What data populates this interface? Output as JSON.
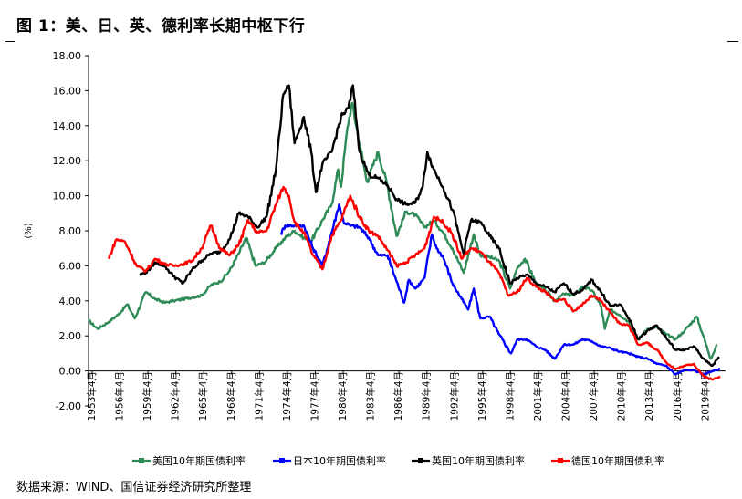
{
  "header": {
    "title": "图 1：美、日、英、德利率长期中枢下行"
  },
  "footer": {
    "source": "数据来源：WIND、国信证券经济研究所整理"
  },
  "chart_data": {
    "type": "line",
    "ylabel": "(%)",
    "xlabel": "",
    "ylim": [
      -2.0,
      18.0
    ],
    "yticks": [
      "18.00",
      "16.00",
      "14.00",
      "12.00",
      "10.00",
      "8.00",
      "6.00",
      "4.00",
      "2.00",
      "0.00",
      "-2.00"
    ],
    "xlim": [
      1953.33,
      2021.9
    ],
    "xticks": [
      "1953年4月",
      "1956年4月",
      "1959年4月",
      "1962年4月",
      "1965年4月",
      "1968年4月",
      "1971年4月",
      "1974年4月",
      "1977年4月",
      "1980年4月",
      "1983年4月",
      "1986年4月",
      "1989年4月",
      "1992年4月",
      "1995年4月",
      "1998年4月",
      "2001年4月",
      "2004年4月",
      "2007年4月",
      "2010年4月",
      "2013年4月",
      "2016年4月",
      "2019年4月"
    ],
    "grid": false,
    "legend": "bottom",
    "series": [
      {
        "name": "美国10年期国债利率",
        "color": "#2e8b57",
        "x": [
          1953.3,
          1954.3,
          1955.5,
          1956.5,
          1957.5,
          1958.3,
          1959.5,
          1960.5,
          1961.5,
          1962.5,
          1963.5,
          1964.5,
          1965.5,
          1966.5,
          1967.5,
          1968.5,
          1969.5,
          1970.3,
          1971.3,
          1972.3,
          1973.5,
          1974.5,
          1975.5,
          1976.5,
          1977.3,
          1978.5,
          1979.5,
          1980.2,
          1980.5,
          1981.2,
          1981.7,
          1982.5,
          1983.3,
          1984.5,
          1985.5,
          1986.5,
          1987.5,
          1988.5,
          1989.5,
          1990.5,
          1991.5,
          1992.5,
          1993.7,
          1994.8,
          1995.5,
          1996.5,
          1997.5,
          1998.7,
          1999.5,
          2000.3,
          2001.5,
          2002.5,
          2003.5,
          2004.5,
          2005.5,
          2006.5,
          2007.5,
          2008.5,
          2008.9,
          2009.5,
          2010.5,
          2011.5,
          2012.5,
          2013.5,
          2014.5,
          2015.5,
          2016.5,
          2017.5,
          2018.8,
          2019.5,
          2020.3,
          2021.0
        ],
        "y": [
          2.9,
          2.4,
          2.8,
          3.2,
          3.8,
          3.0,
          4.5,
          4.1,
          3.9,
          4.0,
          4.1,
          4.2,
          4.3,
          4.9,
          5.1,
          5.7,
          6.7,
          7.6,
          6.0,
          6.2,
          7.0,
          7.6,
          8.0,
          7.6,
          7.4,
          8.6,
          9.5,
          11.5,
          10.5,
          13.9,
          15.3,
          13.0,
          10.8,
          12.5,
          10.6,
          7.7,
          9.1,
          8.9,
          8.2,
          8.6,
          7.9,
          7.0,
          5.6,
          7.8,
          6.6,
          6.5,
          6.3,
          4.7,
          5.9,
          6.4,
          5.0,
          4.6,
          4.0,
          4.4,
          4.3,
          4.8,
          4.6,
          3.7,
          2.4,
          3.5,
          3.2,
          2.8,
          1.8,
          2.4,
          2.5,
          2.1,
          1.8,
          2.3,
          3.1,
          2.0,
          0.7,
          1.5
        ]
      },
      {
        "name": "日本10年期国债利率",
        "color": "#0000ff",
        "x": [
          1974.0,
          1974.5,
          1975.5,
          1976.5,
          1977.5,
          1978.5,
          1979.5,
          1980.3,
          1980.8,
          1981.5,
          1982.5,
          1983.5,
          1984.5,
          1985.5,
          1986.5,
          1987.3,
          1987.8,
          1988.5,
          1989.5,
          1990.3,
          1990.8,
          1991.5,
          1992.5,
          1993.5,
          1994.2,
          1994.8,
          1995.5,
          1996.5,
          1997.5,
          1998.8,
          1999.5,
          2000.5,
          2001.5,
          2002.5,
          2003.5,
          2004.5,
          2005.5,
          2006.5,
          2007.5,
          2008.5,
          2009.5,
          2010.5,
          2011.5,
          2012.5,
          2013.5,
          2014.5,
          2015.5,
          2016.5,
          2017.5,
          2018.5,
          2019.5,
          2020.5,
          2021.3
        ],
        "y": [
          7.8,
          8.3,
          8.3,
          8.3,
          7.0,
          6.0,
          7.9,
          9.5,
          8.5,
          8.3,
          8.2,
          7.6,
          6.6,
          6.6,
          5.1,
          3.9,
          5.2,
          4.7,
          5.3,
          7.8,
          7.0,
          6.5,
          5.0,
          4.1,
          3.5,
          4.7,
          3.0,
          3.1,
          2.1,
          1.0,
          1.8,
          1.8,
          1.4,
          1.2,
          0.7,
          1.5,
          1.5,
          1.8,
          1.7,
          1.4,
          1.3,
          1.1,
          1.0,
          0.8,
          0.7,
          0.4,
          0.3,
          -0.2,
          0.05,
          0.05,
          -0.2,
          0.0,
          0.1
        ]
      },
      {
        "name": "英国10年期国债利率",
        "color": "#000000",
        "x": [
          1958.8,
          1959.5,
          1960.5,
          1961.5,
          1962.5,
          1963.5,
          1964.5,
          1965.5,
          1966.5,
          1967.5,
          1968.5,
          1969.5,
          1970.5,
          1971.5,
          1972.5,
          1973.5,
          1974.3,
          1974.9,
          1975.5,
          1976.5,
          1977.3,
          1977.8,
          1978.5,
          1979.5,
          1980.5,
          1981.3,
          1981.8,
          1982.5,
          1983.5,
          1984.5,
          1985.5,
          1986.5,
          1987.5,
          1988.5,
          1989.3,
          1989.8,
          1990.5,
          1991.5,
          1992.5,
          1993.7,
          1994.5,
          1995.5,
          1996.5,
          1997.5,
          1998.7,
          1999.5,
          2000.5,
          2001.5,
          2002.5,
          2003.5,
          2004.5,
          2005.5,
          2006.5,
          2007.5,
          2008.5,
          2009.5,
          2010.5,
          2011.5,
          2012.5,
          2013.5,
          2014.5,
          2015.5,
          2016.5,
          2017.5,
          2018.5,
          2019.5,
          2020.5,
          2021.2
        ],
        "y": [
          5.5,
          5.6,
          6.2,
          6.0,
          5.4,
          5.0,
          5.8,
          6.3,
          6.7,
          6.8,
          7.5,
          9.0,
          8.8,
          8.2,
          8.8,
          11.5,
          15.8,
          16.3,
          13.0,
          14.5,
          12.5,
          10.2,
          11.8,
          12.5,
          14.5,
          15.0,
          16.3,
          12.5,
          11.2,
          11.0,
          10.6,
          9.8,
          9.5,
          9.6,
          10.5,
          12.5,
          11.5,
          10.5,
          9.2,
          6.7,
          8.6,
          8.5,
          7.7,
          7.0,
          5.0,
          5.3,
          5.5,
          5.0,
          4.8,
          4.5,
          5.0,
          4.4,
          4.6,
          5.2,
          4.5,
          3.7,
          3.8,
          3.0,
          1.8,
          2.3,
          2.6,
          1.9,
          1.2,
          1.2,
          1.4,
          0.7,
          0.3,
          0.8
        ]
      },
      {
        "name": "德国10年期国债利率",
        "color": "#ff0000",
        "x": [
          1955.5,
          1956.3,
          1957.2,
          1957.8,
          1958.5,
          1959.5,
          1960.5,
          1961.5,
          1962.5,
          1963.5,
          1964.5,
          1965.5,
          1966.5,
          1967.5,
          1968.5,
          1969.5,
          1970.5,
          1971.5,
          1972.5,
          1973.5,
          1974.3,
          1974.9,
          1975.5,
          1976.5,
          1977.5,
          1978.5,
          1979.5,
          1980.5,
          1981.5,
          1982.5,
          1983.5,
          1984.5,
          1985.5,
          1986.5,
          1987.5,
          1988.5,
          1989.5,
          1990.5,
          1991.5,
          1992.5,
          1993.5,
          1994.5,
          1995.5,
          1996.5,
          1997.5,
          1998.5,
          1999.5,
          2000.5,
          2001.5,
          2002.5,
          2003.5,
          2004.5,
          2005.5,
          2006.5,
          2007.5,
          2008.5,
          2009.5,
          2010.5,
          2011.5,
          2012.5,
          2013.5,
          2014.5,
          2015.5,
          2016.5,
          2017.5,
          2018.5,
          2019.5,
          2020.5,
          2021.3
        ],
        "y": [
          6.4,
          7.5,
          7.4,
          6.8,
          6.0,
          5.7,
          6.4,
          6.1,
          6.0,
          6.1,
          6.3,
          7.0,
          8.3,
          7.0,
          6.6,
          7.2,
          8.6,
          7.9,
          8.0,
          9.5,
          10.5,
          10.0,
          8.5,
          7.9,
          6.6,
          5.8,
          7.7,
          8.6,
          10.0,
          8.8,
          8.0,
          7.7,
          6.9,
          6.0,
          6.2,
          6.6,
          7.0,
          8.8,
          8.5,
          7.8,
          6.4,
          7.0,
          6.8,
          6.2,
          5.6,
          4.3,
          4.5,
          5.3,
          4.8,
          4.5,
          4.0,
          4.1,
          3.4,
          3.8,
          4.3,
          4.0,
          3.3,
          2.7,
          2.6,
          1.5,
          1.6,
          1.2,
          0.5,
          0.1,
          0.3,
          0.4,
          -0.3,
          -0.5,
          -0.3
        ]
      }
    ]
  }
}
